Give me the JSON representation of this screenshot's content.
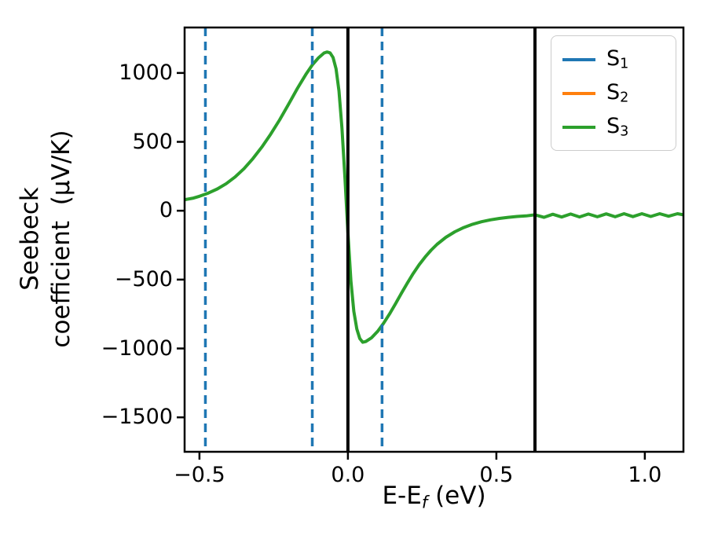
{
  "figure": {
    "background": "#ffffff"
  },
  "chart_data": {
    "type": "line",
    "title": "",
    "xlabel": {
      "main": "E-E",
      "sub": "f",
      "suffix": " (eV)"
    },
    "ylabel": {
      "line1": "Seebeck",
      "line2": "coefficient  (μV/K)"
    },
    "xlim": [
      -0.55,
      1.13
    ],
    "ylim": [
      -1750,
      1330
    ],
    "grid": false,
    "axes": {
      "spine_color": "#000000",
      "spine_width": 2.5,
      "tick_length": 10,
      "tick_width": 2.5
    },
    "xticks": {
      "values": [
        -0.5,
        0.0,
        0.5,
        1.0
      ],
      "labels": [
        "−0.5",
        "0.0",
        "0.5",
        "1.0"
      ]
    },
    "yticks": {
      "values": [
        1000,
        500,
        0,
        -500,
        -1000,
        -1500
      ],
      "labels": [
        "1000",
        "500",
        "0",
        "−500",
        "−1000",
        "−1500"
      ]
    },
    "legend": {
      "position": "upper right",
      "entries": [
        {
          "main": "S",
          "sub": "1",
          "color": "#1f77b4"
        },
        {
          "main": "S",
          "sub": "2",
          "color": "#ff7f0e"
        },
        {
          "main": "S",
          "sub": "3",
          "color": "#2ca02c"
        }
      ]
    },
    "vlines": [
      {
        "x": -0.48,
        "style": "dashed",
        "color": "#1f77b4",
        "width": 3.5
      },
      {
        "x": -0.12,
        "style": "dashed",
        "color": "#1f77b4",
        "width": 3.5
      },
      {
        "x": 0.115,
        "style": "dashed",
        "color": "#1f77b4",
        "width": 3.5
      },
      {
        "x": 0.0,
        "style": "solid",
        "color": "#000000",
        "width": 4
      },
      {
        "x": 0.63,
        "style": "solid",
        "color": "#000000",
        "width": 4
      }
    ],
    "series": [
      {
        "name": "S1",
        "color": "#1f77b4",
        "visible": false
      },
      {
        "name": "S2",
        "color": "#ff7f0e",
        "visible": false
      },
      {
        "name": "S3",
        "color": "#2ca02c",
        "visible": true,
        "width": 4,
        "points": [
          [
            -0.55,
            80
          ],
          [
            -0.52,
            92
          ],
          [
            -0.5,
            105
          ],
          [
            -0.47,
            128
          ],
          [
            -0.44,
            158
          ],
          [
            -0.41,
            196
          ],
          [
            -0.38,
            245
          ],
          [
            -0.35,
            305
          ],
          [
            -0.32,
            378
          ],
          [
            -0.29,
            462
          ],
          [
            -0.26,
            556
          ],
          [
            -0.23,
            660
          ],
          [
            -0.2,
            772
          ],
          [
            -0.17,
            888
          ],
          [
            -0.14,
            995
          ],
          [
            -0.12,
            1058
          ],
          [
            -0.1,
            1108
          ],
          [
            -0.08,
            1145
          ],
          [
            -0.07,
            1152
          ],
          [
            -0.06,
            1146
          ],
          [
            -0.05,
            1112
          ],
          [
            -0.04,
            1030
          ],
          [
            -0.03,
            870
          ],
          [
            -0.02,
            600
          ],
          [
            -0.01,
            240
          ],
          [
            0.0,
            -160
          ],
          [
            0.01,
            -510
          ],
          [
            0.02,
            -730
          ],
          [
            0.03,
            -858
          ],
          [
            0.04,
            -928
          ],
          [
            0.05,
            -955
          ],
          [
            0.06,
            -950
          ],
          [
            0.08,
            -922
          ],
          [
            0.1,
            -876
          ],
          [
            0.12,
            -818
          ],
          [
            0.14,
            -750
          ],
          [
            0.16,
            -676
          ],
          [
            0.18,
            -600
          ],
          [
            0.2,
            -526
          ],
          [
            0.22,
            -456
          ],
          [
            0.24,
            -392
          ],
          [
            0.26,
            -336
          ],
          [
            0.28,
            -287
          ],
          [
            0.3,
            -244
          ],
          [
            0.33,
            -193
          ],
          [
            0.36,
            -153
          ],
          [
            0.39,
            -122
          ],
          [
            0.42,
            -98
          ],
          [
            0.45,
            -80
          ],
          [
            0.48,
            -66
          ],
          [
            0.51,
            -56
          ],
          [
            0.54,
            -48
          ],
          [
            0.57,
            -42
          ],
          [
            0.6,
            -38
          ],
          [
            0.63,
            -30
          ],
          [
            0.66,
            -48
          ],
          [
            0.69,
            -26
          ],
          [
            0.72,
            -46
          ],
          [
            0.75,
            -24
          ],
          [
            0.78,
            -45
          ],
          [
            0.81,
            -24
          ],
          [
            0.84,
            -44
          ],
          [
            0.87,
            -23
          ],
          [
            0.9,
            -44
          ],
          [
            0.93,
            -22
          ],
          [
            0.96,
            -43
          ],
          [
            0.99,
            -22
          ],
          [
            1.02,
            -42
          ],
          [
            1.05,
            -22
          ],
          [
            1.08,
            -40
          ],
          [
            1.11,
            -22
          ],
          [
            1.13,
            -30
          ]
        ]
      }
    ]
  }
}
